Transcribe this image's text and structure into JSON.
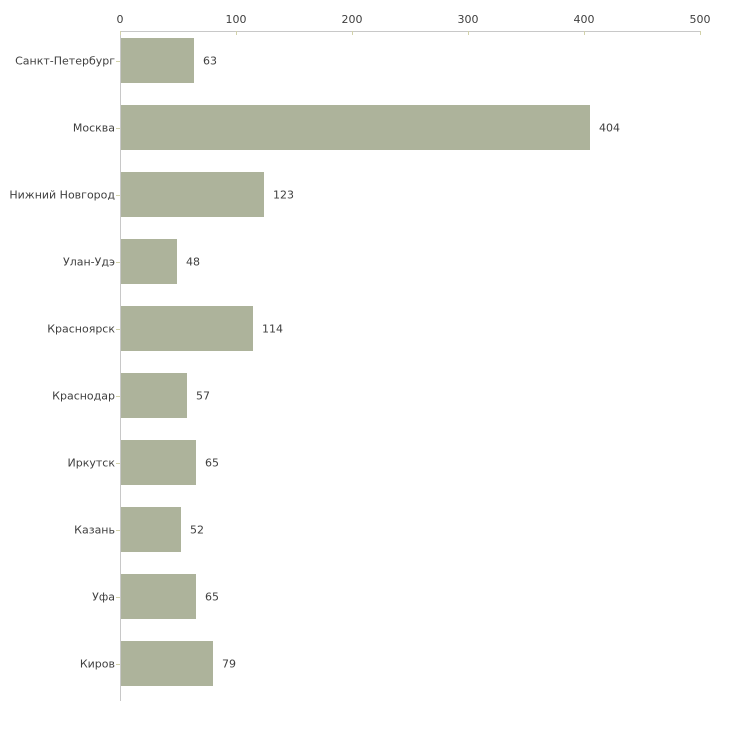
{
  "chart_data": {
    "type": "bar",
    "orientation": "horizontal",
    "title": "",
    "xlabel": "",
    "ylabel": "",
    "categories": [
      "Санкт-Петербург",
      "Москва",
      "Нижний Новгород",
      "Улан-Удэ",
      "Красноярск",
      "Краснодар",
      "Иркутск",
      "Казань",
      "Уфа",
      "Киров"
    ],
    "values": [
      63,
      404,
      123,
      48,
      114,
      57,
      65,
      52,
      65,
      79
    ],
    "xlim": [
      0,
      500
    ],
    "x_ticks": [
      0,
      100,
      200,
      300,
      400,
      500
    ],
    "value_labels_shown": true,
    "grid": false,
    "legend_position": "none",
    "axis_position": "top",
    "colors": {
      "bar": "#adb39b",
      "axis_line": "#c8c8c8",
      "tick_mark": "#d2d2aa",
      "text": "#3f3f3f",
      "background": "#ffffff"
    }
  }
}
